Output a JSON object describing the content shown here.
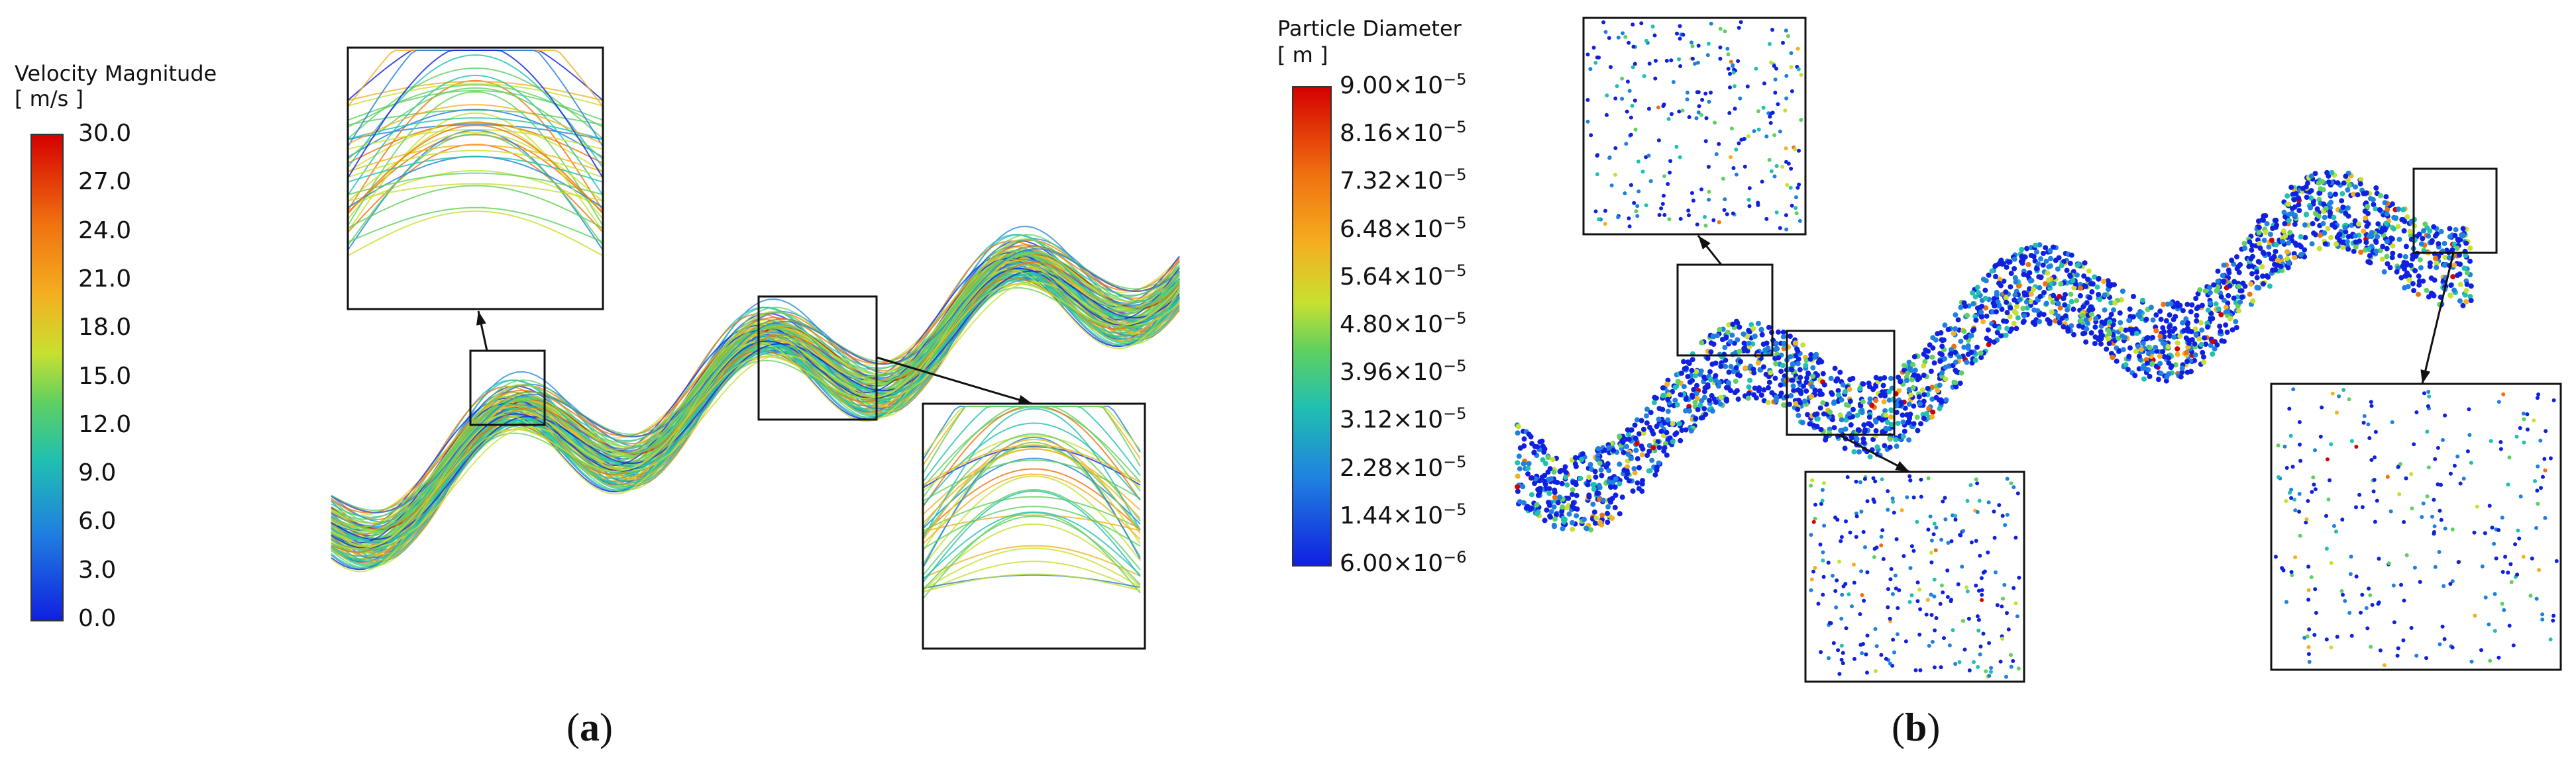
{
  "panel_a": {
    "label_open": "(",
    "label_letter": "a",
    "label_close": ")",
    "legend": {
      "title": "Velocity Magnitude",
      "unit": "[ m/s ]",
      "ticks": [
        "30.0",
        "27.0",
        "24.0",
        "21.0",
        "18.0",
        "15.0",
        "12.0",
        "9.0",
        "6.0",
        "3.0",
        "0.0"
      ],
      "colormap": [
        "#d40000",
        "#f07010",
        "#f4b020",
        "#c8e030",
        "#60d060",
        "#20c0b0",
        "#2080e0",
        "#1020e0"
      ]
    }
  },
  "panel_b": {
    "label_open": "(",
    "label_letter": "b",
    "label_close": ")",
    "legend": {
      "title": "Particle Diameter",
      "unit": "[ m ]",
      "ticks": [
        {
          "mantissa": "9.00×10",
          "exp": "−5"
        },
        {
          "mantissa": "8.16×10",
          "exp": "−5"
        },
        {
          "mantissa": "7.32×10",
          "exp": "−5"
        },
        {
          "mantissa": "6.48×10",
          "exp": "−5"
        },
        {
          "mantissa": "5.64×10",
          "exp": "−5"
        },
        {
          "mantissa": "4.80×10",
          "exp": "−5"
        },
        {
          "mantissa": "3.96×10",
          "exp": "−5"
        },
        {
          "mantissa": "3.12×10",
          "exp": "−5"
        },
        {
          "mantissa": "2.28×10",
          "exp": "−5"
        },
        {
          "mantissa": "1.44×10",
          "exp": "−5"
        },
        {
          "mantissa": "6.00×10",
          "exp": "−6"
        }
      ],
      "colormap": [
        "#d40000",
        "#f07010",
        "#f4b020",
        "#c8e030",
        "#60d060",
        "#20c0b0",
        "#2080e0",
        "#1020e0"
      ]
    }
  }
}
